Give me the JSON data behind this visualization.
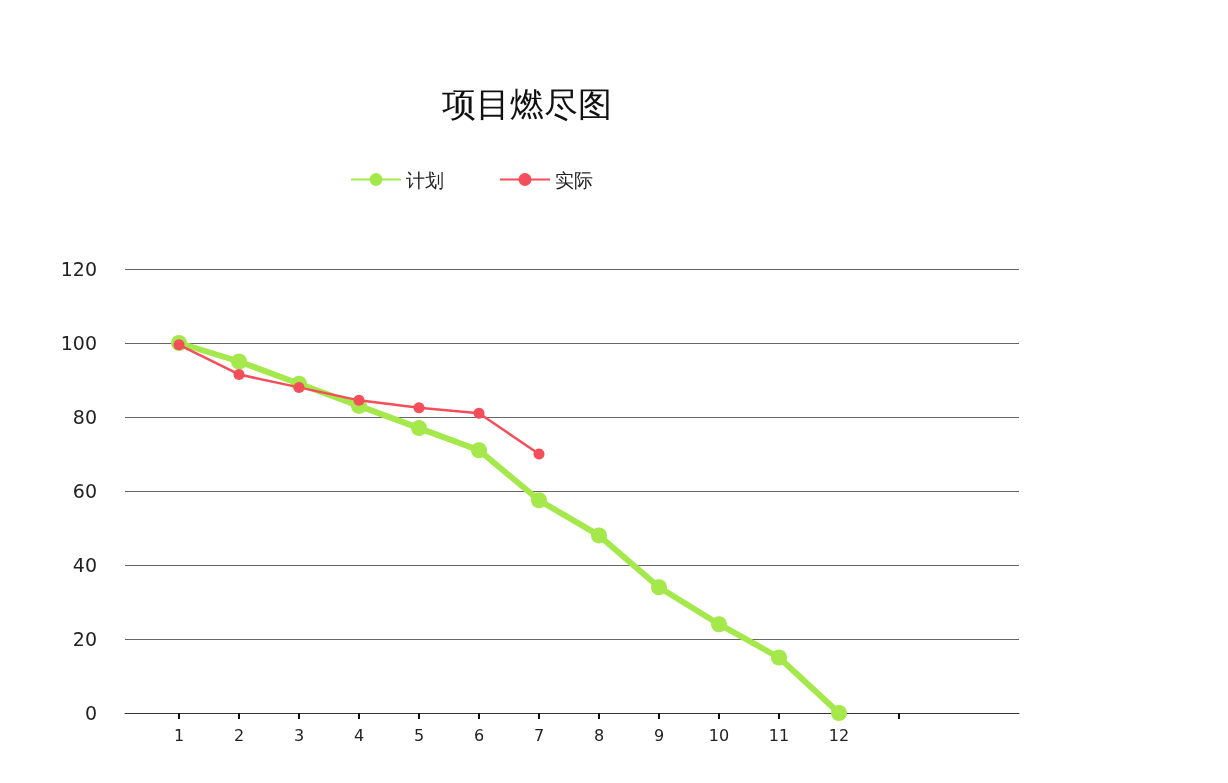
{
  "chart_data": {
    "type": "line",
    "title": "项目燃尽图",
    "x": [
      1,
      2,
      3,
      4,
      5,
      6,
      7,
      8,
      9,
      10,
      11,
      12
    ],
    "series": [
      {
        "name": "计划",
        "color": "#a4e84c",
        "values": [
          100,
          95,
          89,
          83,
          77,
          71,
          57.5,
          48,
          34,
          24,
          15,
          0
        ]
      },
      {
        "name": "实际",
        "color": "#f44e5a",
        "values": [
          99.5,
          91.5,
          88,
          84.5,
          82.5,
          81,
          70,
          null,
          null,
          null,
          null,
          null
        ]
      }
    ],
    "xlim": [
      0.1,
      15
    ],
    "xticks": [
      1,
      2,
      3,
      4,
      5,
      6,
      7,
      8,
      9,
      10,
      11,
      12,
      {
        "value": 13,
        "label": null
      }
    ],
    "ylim": [
      0,
      120
    ],
    "yticks": [
      0,
      20,
      40,
      60,
      80,
      100,
      120
    ],
    "grid": "y",
    "legend": "top",
    "marker": "circle"
  }
}
